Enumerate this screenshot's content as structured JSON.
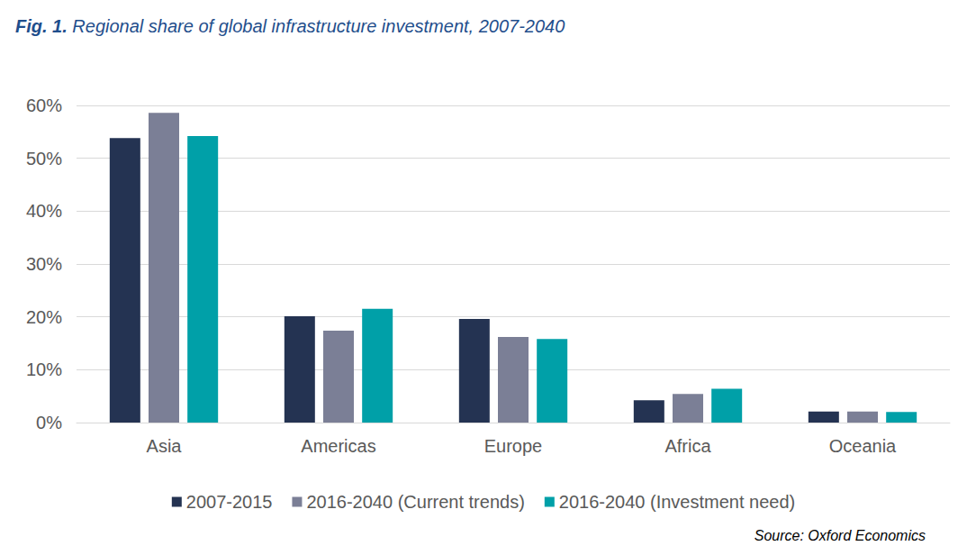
{
  "chart_data": {
    "type": "bar",
    "title": "Fig. 1. Regional share of global infrastructure investment, 2007-2040",
    "categories": [
      "Asia",
      "Americas",
      "Europe",
      "Africa",
      "Oceania"
    ],
    "series": [
      {
        "name": "2007-2015",
        "color": "#243352",
        "values": [
          53.8,
          20.1,
          19.6,
          4.2,
          2.1
        ]
      },
      {
        "name": "2016-2040 (Current trends)",
        "color": "#7b7f96",
        "values": [
          58.6,
          17.4,
          16.2,
          5.4,
          2.1
        ]
      },
      {
        "name": "2016-2040 (Investment need)",
        "color": "#00a0a8",
        "values": [
          54.2,
          21.5,
          15.8,
          6.4,
          2.0
        ]
      }
    ],
    "ylim": [
      0,
      60
    ],
    "yticks": [
      {
        "value": 0,
        "label": "0%"
      },
      {
        "value": 10,
        "label": "10%"
      },
      {
        "value": 20,
        "label": "20%"
      },
      {
        "value": 30,
        "label": "30%"
      },
      {
        "value": 40,
        "label": "40%"
      },
      {
        "value": 50,
        "label": "50%"
      },
      {
        "value": 60,
        "label": "60%"
      }
    ],
    "grid": true,
    "legend": "bottom",
    "annotations": [
      "Source: Oxford Economics"
    ]
  }
}
